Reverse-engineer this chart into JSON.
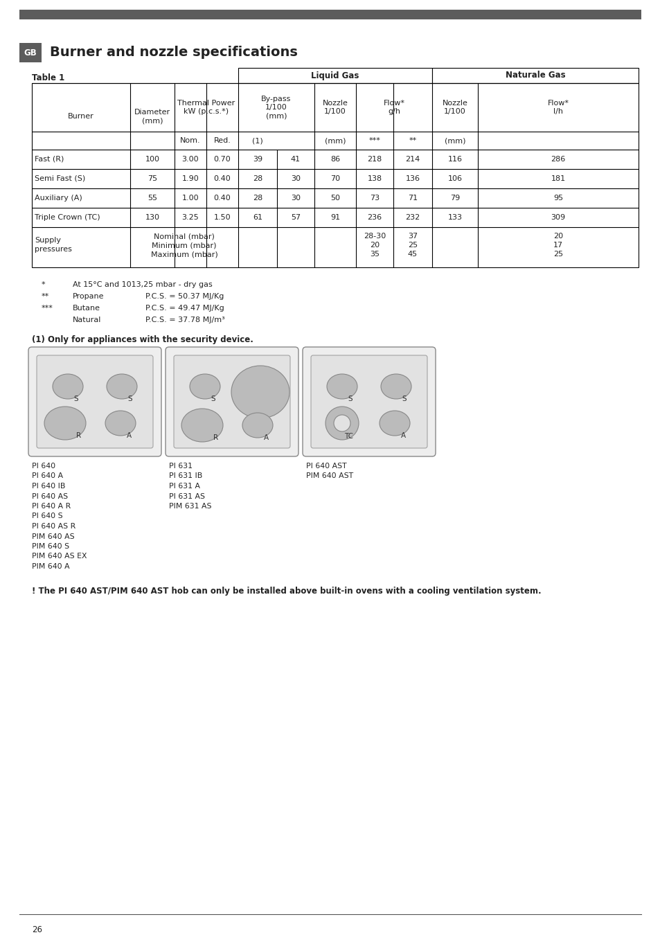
{
  "title": "Burner and nozzle specifications",
  "gb_label": "GB",
  "liquid_gas_header": "Liquid Gas",
  "natural_gas_header": "Naturale Gas",
  "rows": [
    [
      "Fast (R)",
      "100",
      "3.00",
      "0.70",
      "39",
      "41",
      "86",
      "218",
      "214",
      "116",
      "286"
    ],
    [
      "Semi Fast (S)",
      "75",
      "1.90",
      "0.40",
      "28",
      "30",
      "70",
      "138",
      "136",
      "106",
      "181"
    ],
    [
      "Auxiliary (A)",
      "55",
      "1.00",
      "0.40",
      "28",
      "30",
      "50",
      "73",
      "71",
      "79",
      "95"
    ],
    [
      "Triple Crown (TC)",
      "130",
      "3.25",
      "1.50",
      "61",
      "57",
      "91",
      "236",
      "232",
      "133",
      "309"
    ]
  ],
  "supply_col7": "28-30\n20\n35",
  "supply_col8": "37\n25\n45",
  "supply_col10": "20\n17\n25",
  "footnotes": [
    [
      "*",
      "At 15°C and 1013,25 mbar - dry gas",
      "",
      ""
    ],
    [
      "**",
      "Propane",
      "P.C.S. = 50.37 MJ/Kg",
      ""
    ],
    [
      "***",
      "Butane",
      "P.C.S. = 49.47 MJ/Kg",
      ""
    ],
    [
      "",
      "Natural",
      "P.C.S. = 37.78 MJ/m³",
      ""
    ]
  ],
  "security_note": "(1) Only for appliances with the security device.",
  "hob_models_col1": [
    "PI 640",
    "PI 640 A",
    "PI 640 IB",
    "PI 640 AS",
    "PI 640 A R",
    "PI 640 S",
    "PI 640 AS R",
    "PIM 640 AS",
    "PIM 640 S",
    "PIM 640 AS EX",
    "PIM 640 A"
  ],
  "hob_models_col2": [
    "PI 631",
    "PI 631 IB",
    "PI 631 A",
    "PI 631 AS",
    "PIM 631 AS"
  ],
  "hob_models_col3": [
    "PI 640 AST",
    "PIM 640 AST"
  ],
  "warning_note": "! The PI 640 AST/PIM 640 AST hob can only be installed above built-in ovens with a cooling ventilation system.",
  "page_number": "26",
  "bar_color": "#5c5c5c",
  "table_line_color": "#000000",
  "text_color": "#222222"
}
